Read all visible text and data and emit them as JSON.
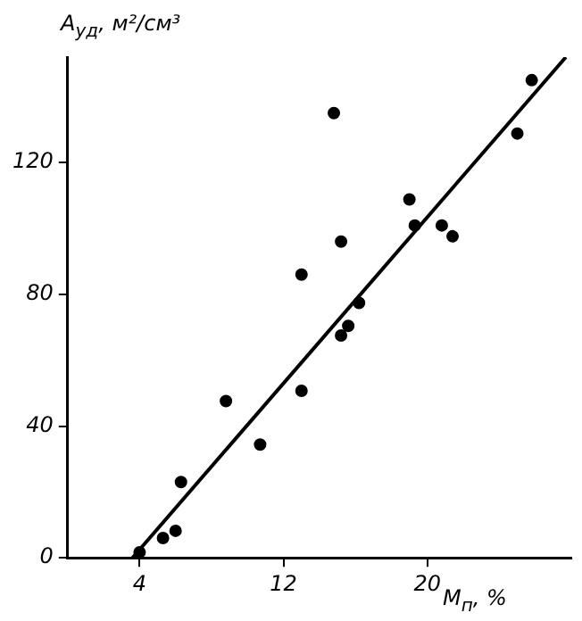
{
  "chart_data": {
    "type": "scatter",
    "xlabel": "M$_{п}$, %",
    "ylabel": "A$_{уд}$, м²/см³",
    "xlim": [
      0,
      28
    ],
    "ylim": [
      0,
      152
    ],
    "xticks": [
      4,
      12,
      20
    ],
    "yticks": [
      0,
      40,
      80,
      120
    ],
    "grid": false,
    "legend": false,
    "marker": "circle",
    "series": [
      {
        "color": "#000000",
        "x": [
          4.0,
          5.3,
          6.0,
          6.3,
          8.8,
          10.7,
          13.0,
          13.0,
          14.8,
          15.2,
          15.2,
          15.6,
          16.2,
          19.0,
          19.3,
          20.8,
          21.4,
          25.0,
          25.8
        ],
        "values": [
          1.7,
          6,
          8.2,
          23,
          47.6,
          34.4,
          50.7,
          86,
          135,
          96,
          67.5,
          70.4,
          77.4,
          108.8,
          100.9,
          100.9,
          97.6,
          128.8,
          145
        ]
      },
      {
        "type": "line",
        "color": "#000000",
        "marker": "none",
        "x": [
          3.6,
          27.7
        ],
        "values": [
          0,
          152
        ]
      }
    ]
  }
}
